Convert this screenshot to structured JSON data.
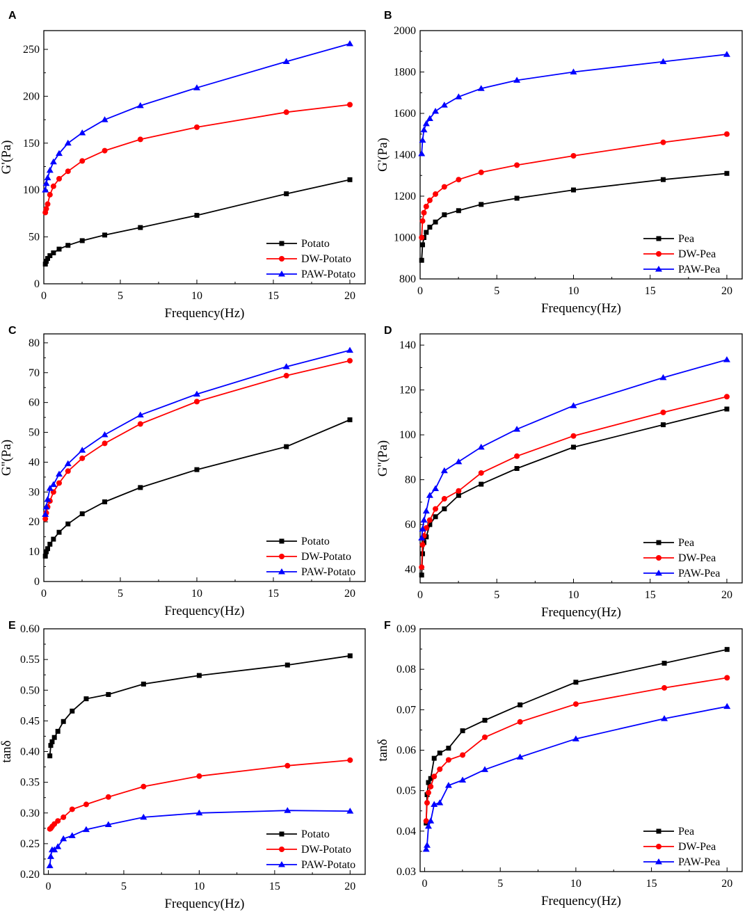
{
  "chart_data": [
    {
      "panel": "A",
      "type": "line",
      "xlabel": "Frequency(Hz)",
      "ylabel": "G'(Pa)",
      "xlim": [
        0,
        21
      ],
      "ylim": [
        0,
        270
      ],
      "xticks": [
        0,
        5,
        10,
        15,
        20
      ],
      "yticks": [
        0,
        50,
        100,
        150,
        200,
        250
      ],
      "x": [
        0.1,
        0.16,
        0.25,
        0.4,
        0.63,
        1.0,
        1.58,
        2.51,
        3.98,
        6.31,
        10.0,
        15.85,
        20.0
      ],
      "series": [
        {
          "name": "Potato",
          "color": "#000000",
          "marker": "square",
          "values": [
            21,
            24,
            27,
            30,
            33,
            37,
            41,
            46,
            52,
            60,
            73,
            96,
            111
          ]
        },
        {
          "name": "DW-Potato",
          "color": "#ff0000",
          "marker": "circle",
          "values": [
            76,
            80,
            85,
            95,
            104,
            112,
            120,
            131,
            142,
            154,
            167,
            183,
            191
          ]
        },
        {
          "name": "PAW-Potato",
          "color": "#0000ff",
          "marker": "triangle",
          "values": [
            100,
            107,
            113,
            121,
            130,
            139,
            150,
            161,
            175,
            190,
            209,
            237,
            256
          ]
        }
      ]
    },
    {
      "panel": "B",
      "type": "line",
      "xlabel": "Frequency(Hz)",
      "ylabel": "G'(Pa)",
      "xlim": [
        0,
        21
      ],
      "ylim": [
        800,
        2000
      ],
      "xticks": [
        0,
        5,
        10,
        15,
        20
      ],
      "yticks": [
        800,
        1000,
        1200,
        1400,
        1600,
        1800,
        2000
      ],
      "x": [
        0.1,
        0.16,
        0.25,
        0.4,
        0.63,
        1.0,
        1.58,
        2.51,
        3.98,
        6.31,
        10.0,
        15.85,
        20.0
      ],
      "series": [
        {
          "name": "Pea",
          "color": "#000000",
          "marker": "square",
          "values": [
            890,
            965,
            1000,
            1025,
            1050,
            1075,
            1110,
            1130,
            1160,
            1190,
            1230,
            1280,
            1310
          ]
        },
        {
          "name": "DW-Pea",
          "color": "#ff0000",
          "marker": "circle",
          "values": [
            1000,
            1080,
            1120,
            1150,
            1180,
            1210,
            1245,
            1280,
            1315,
            1350,
            1395,
            1460,
            1500
          ]
        },
        {
          "name": "PAW-Pea",
          "color": "#0000ff",
          "marker": "triangle",
          "values": [
            1405,
            1470,
            1520,
            1550,
            1575,
            1610,
            1640,
            1680,
            1720,
            1760,
            1800,
            1850,
            1885
          ]
        }
      ]
    },
    {
      "panel": "C",
      "type": "line",
      "xlabel": "Frequency(Hz)",
      "ylabel": "G''(Pa)",
      "xlim": [
        0,
        21
      ],
      "ylim": [
        0,
        83
      ],
      "xticks": [
        0,
        5,
        10,
        15,
        20
      ],
      "yticks": [
        0,
        10,
        20,
        30,
        40,
        50,
        60,
        70,
        80
      ],
      "x": [
        0.1,
        0.16,
        0.25,
        0.4,
        0.63,
        1.0,
        1.58,
        2.51,
        3.98,
        6.31,
        10.0,
        15.85,
        20.0
      ],
      "series": [
        {
          "name": "Potato",
          "color": "#000000",
          "marker": "square",
          "values": [
            8.5,
            10,
            11,
            12.5,
            14.2,
            16.5,
            19.3,
            22.7,
            26.7,
            31.5,
            37.5,
            45.2,
            54.2
          ]
        },
        {
          "name": "DW-Potato",
          "color": "#ff0000",
          "marker": "circle",
          "values": [
            21,
            23,
            25,
            27,
            30,
            33,
            37,
            41.3,
            46.3,
            52.8,
            60.3,
            69,
            74
          ]
        },
        {
          "name": "PAW-Potato",
          "color": "#0000ff",
          "marker": "triangle",
          "values": [
            22.5,
            25,
            27.5,
            31.2,
            32.5,
            36,
            39.5,
            44,
            49.2,
            55.8,
            62.8,
            72,
            77.5
          ]
        }
      ]
    },
    {
      "panel": "D",
      "type": "line",
      "xlabel": "Frequency(Hz)",
      "ylabel": "G''(Pa)",
      "xlim": [
        0,
        21
      ],
      "ylim": [
        34,
        145
      ],
      "xticks": [
        0,
        5,
        10,
        15,
        20
      ],
      "yticks": [
        40,
        60,
        80,
        100,
        120,
        140
      ],
      "x": [
        0.1,
        0.16,
        0.25,
        0.4,
        0.63,
        1.0,
        1.58,
        2.51,
        3.98,
        6.31,
        10.0,
        15.85,
        20.0
      ],
      "series": [
        {
          "name": "Pea",
          "color": "#000000",
          "marker": "square",
          "values": [
            37.5,
            47,
            52,
            54.5,
            60,
            63.5,
            67,
            73,
            78,
            85,
            94.5,
            104.5,
            111.5
          ]
        },
        {
          "name": "DW-Pea",
          "color": "#ff0000",
          "marker": "circle",
          "values": [
            41,
            51,
            55,
            58.5,
            62,
            67,
            71.5,
            75,
            83,
            90.5,
            99.5,
            110,
            117
          ]
        },
        {
          "name": "PAW-Pea",
          "color": "#0000ff",
          "marker": "triangle",
          "values": [
            54,
            58,
            62,
            66,
            73,
            76,
            84,
            88,
            94.5,
            102.5,
            113,
            125.5,
            133.5
          ]
        }
      ]
    },
    {
      "panel": "E",
      "type": "line",
      "xlabel": "Frequency(Hz)",
      "ylabel": "tanδ",
      "xlim": [
        -0.3,
        21
      ],
      "ylim": [
        0.2,
        0.6
      ],
      "xticks": [
        0,
        5,
        10,
        15,
        20
      ],
      "yticks": [
        0.2,
        0.25,
        0.3,
        0.35,
        0.4,
        0.45,
        0.5,
        0.55,
        0.6
      ],
      "x": [
        0.1,
        0.16,
        0.25,
        0.4,
        0.63,
        1.0,
        1.58,
        2.51,
        3.98,
        6.31,
        10.0,
        15.85,
        20.0
      ],
      "series": [
        {
          "name": "Potato",
          "color": "#000000",
          "marker": "square",
          "values": [
            0.393,
            0.41,
            0.416,
            0.423,
            0.433,
            0.449,
            0.466,
            0.486,
            0.493,
            0.51,
            0.524,
            0.541,
            0.556
          ]
        },
        {
          "name": "DW-Potato",
          "color": "#ff0000",
          "marker": "circle",
          "values": [
            0.274,
            0.275,
            0.278,
            0.282,
            0.287,
            0.293,
            0.306,
            0.314,
            0.326,
            0.343,
            0.36,
            0.377,
            0.386
          ]
        },
        {
          "name": "PAW-Potato",
          "color": "#0000ff",
          "marker": "triangle",
          "values": [
            0.214,
            0.229,
            0.24,
            0.24,
            0.245,
            0.258,
            0.263,
            0.273,
            0.281,
            0.293,
            0.3,
            0.304,
            0.303
          ]
        }
      ]
    },
    {
      "panel": "F",
      "type": "line",
      "xlabel": "Frequency(Hz)",
      "ylabel": "tanδ",
      "xlim": [
        -0.3,
        21
      ],
      "ylim": [
        0.03,
        0.09
      ],
      "xticks": [
        0,
        5,
        10,
        15,
        20
      ],
      "yticks": [
        0.03,
        0.04,
        0.05,
        0.06,
        0.07,
        0.08,
        0.09
      ],
      "x": [
        0.1,
        0.16,
        0.25,
        0.4,
        0.63,
        1.0,
        1.58,
        2.51,
        3.98,
        6.31,
        10.0,
        15.85,
        20.0
      ],
      "series": [
        {
          "name": "Pea",
          "color": "#000000",
          "marker": "square",
          "values": [
            0.042,
            0.049,
            0.052,
            0.053,
            0.058,
            0.0593,
            0.0605,
            0.0648,
            0.0674,
            0.0712,
            0.0768,
            0.0815,
            0.0849
          ]
        },
        {
          "name": "DW-Pea",
          "color": "#ff0000",
          "marker": "circle",
          "values": [
            0.0425,
            0.047,
            0.0495,
            0.051,
            0.0535,
            0.0553,
            0.0576,
            0.0588,
            0.0632,
            0.067,
            0.0714,
            0.0754,
            0.0779
          ]
        },
        {
          "name": "PAW-Pea",
          "color": "#0000ff",
          "marker": "triangle",
          "values": [
            0.0355,
            0.0365,
            0.0412,
            0.0425,
            0.0466,
            0.047,
            0.0513,
            0.0526,
            0.0552,
            0.0583,
            0.0628,
            0.0678,
            0.0708
          ]
        }
      ]
    }
  ]
}
